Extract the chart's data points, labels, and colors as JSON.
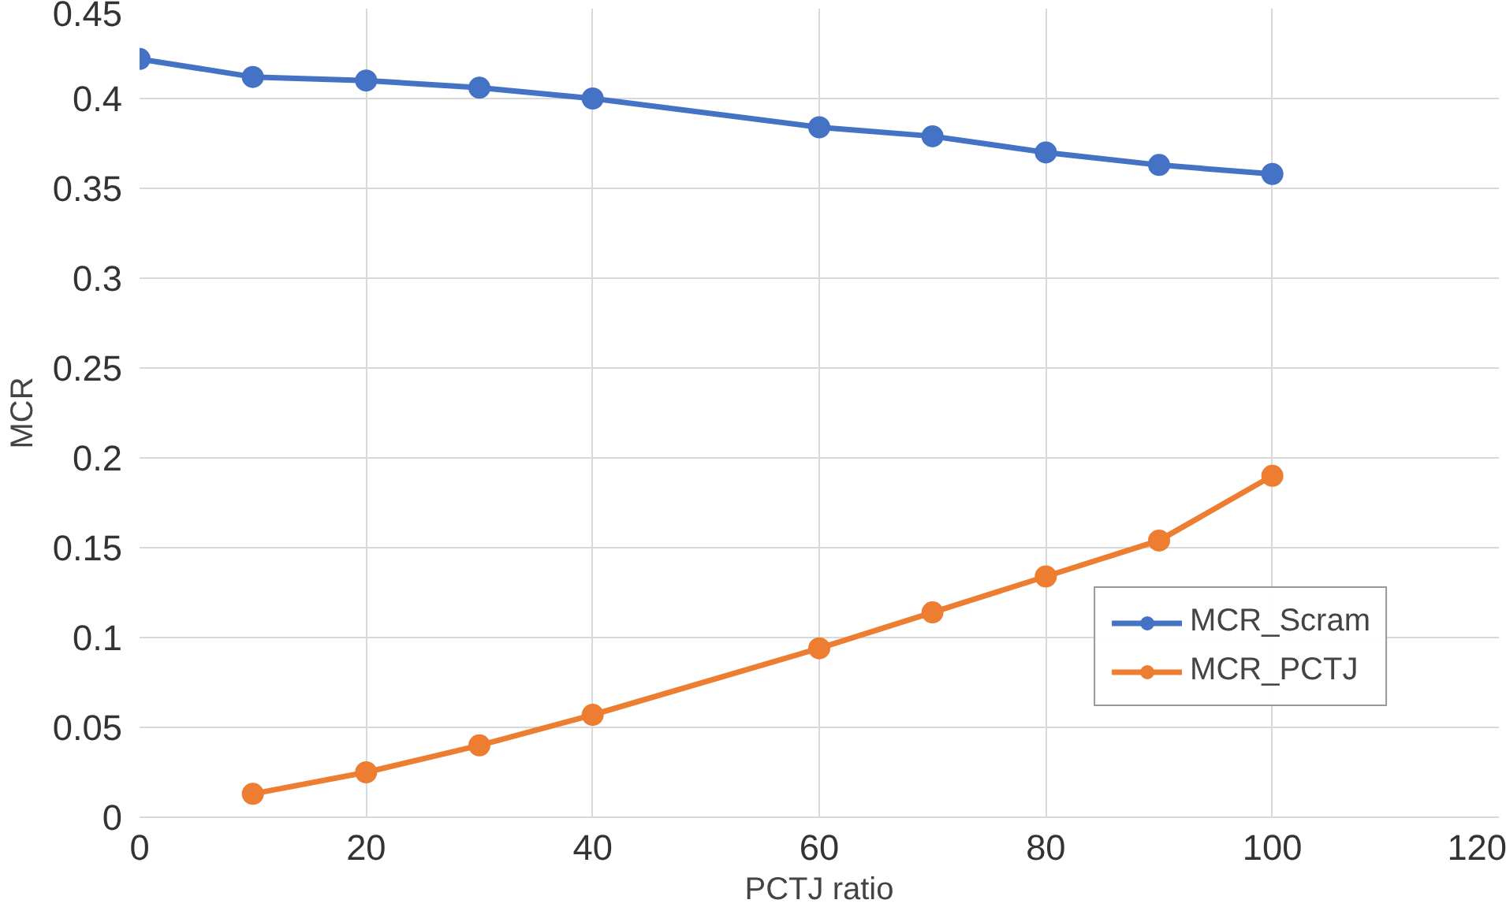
{
  "chart_data": {
    "type": "line",
    "xlabel": "PCTJ ratio",
    "ylabel": "MCR",
    "xlim": [
      0,
      120
    ],
    "xticks": [
      0,
      20,
      40,
      60,
      80,
      100,
      120
    ],
    "ylim": [
      0,
      0.45
    ],
    "yticks": [
      0,
      0.05,
      0.1,
      0.15,
      0.2,
      0.25,
      0.3,
      0.35,
      0.4,
      0.45
    ],
    "grid": true,
    "legend": "bottom right",
    "marker": "circle",
    "line_style": "solid",
    "series": [
      {
        "name": "MCR_Scram",
        "color": "#4472c4",
        "x": [
          0,
          10,
          20,
          30,
          40,
          60,
          70,
          80,
          90,
          100
        ],
        "values": [
          0.422,
          0.412,
          0.41,
          0.406,
          0.4,
          0.384,
          0.379,
          0.37,
          0.363,
          0.358
        ]
      },
      {
        "name": "MCR_PCTJ",
        "color": "#ed7d31",
        "x": [
          10,
          20,
          30,
          40,
          60,
          70,
          80,
          90,
          100
        ],
        "values": [
          0.013,
          0.025,
          0.04,
          0.057,
          0.094,
          0.114,
          0.134,
          0.154,
          0.19
        ]
      }
    ]
  }
}
